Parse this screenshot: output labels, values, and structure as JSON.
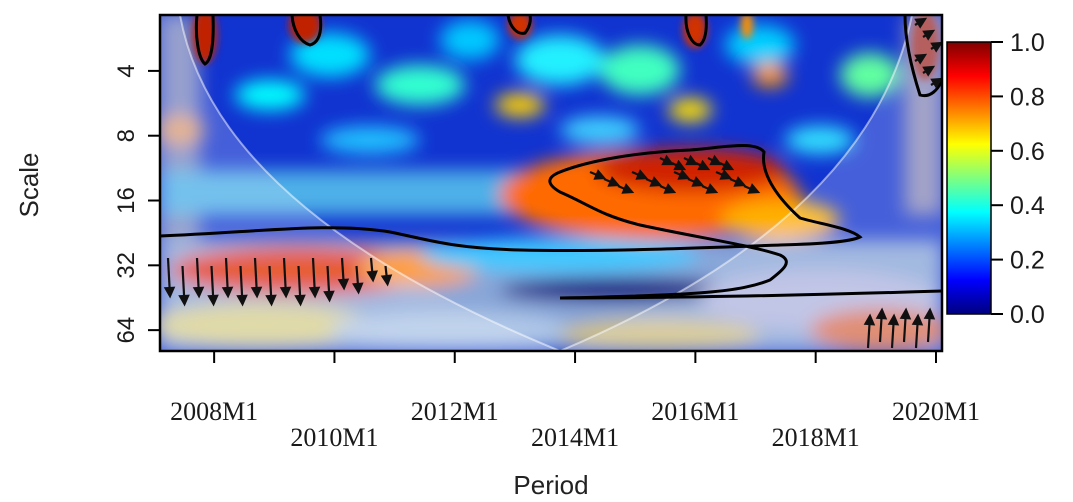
{
  "chart_data": {
    "type": "heatmap",
    "title": "",
    "xlabel": "Period",
    "ylabel": "Scale",
    "x_ticks": [
      "2008M1",
      "2010M1",
      "2012M1",
      "2014M1",
      "2016M1",
      "2018M1",
      "2020M1"
    ],
    "y_ticks": [
      "4",
      "8",
      "16",
      "32",
      "64"
    ],
    "y_scale": "log2",
    "xlim": [
      2007.1,
      2020.1
    ],
    "ylim": [
      2.2,
      80
    ],
    "colorbar": {
      "ticks": [
        "0.0",
        "0.2",
        "0.4",
        "0.6",
        "0.8",
        "1.0"
      ],
      "range": [
        0,
        1
      ],
      "colormap": [
        "#00007f",
        "#0000ff",
        "#007fff",
        "#00ffff",
        "#7fff7f",
        "#ffff00",
        "#ff7f00",
        "#ff0000",
        "#7f0000"
      ]
    },
    "significant_regions": [
      {
        "x_range": [
          2014.0,
          2017.9
        ],
        "scale_range": [
          10,
          26
        ],
        "coherence": 0.9
      },
      {
        "x_range": [
          2007.1,
          2011.0
        ],
        "scale_range": [
          28,
          42
        ],
        "coherence": 0.85
      },
      {
        "x_range": [
          2019.3,
          2020.1
        ],
        "scale_range": [
          50,
          75
        ],
        "coherence": 0.8
      }
    ],
    "cone_of_influence": true
  }
}
